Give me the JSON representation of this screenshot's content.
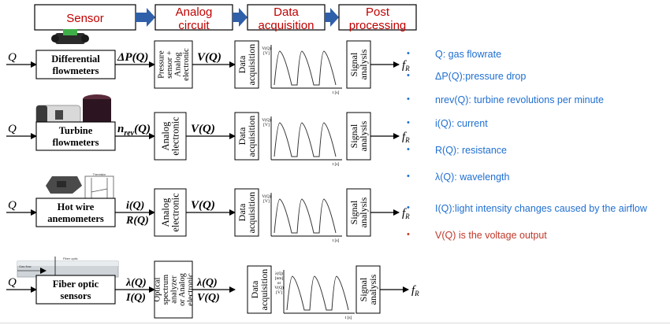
{
  "colors": {
    "stage_fill": "#ffffff",
    "stage_text": "#c00000",
    "stage_arrow_fill": "#2f5fa8",
    "bullet_blue": "#1f6fd1",
    "bullet_red": "#c0392b",
    "ink": "#000000"
  },
  "stages": [
    {
      "label": "Sensor"
    },
    {
      "label": "Analog circuit"
    },
    {
      "label": "Data acquisition"
    },
    {
      "label": "Post processing"
    }
  ],
  "rows": [
    {
      "input": "Q",
      "sensor": [
        "Differential",
        "flowmeters"
      ],
      "signal1": [
        "ΔP(Q)"
      ],
      "circuit": [
        "Pressure",
        "sensor +",
        "Analog",
        "electronic"
      ],
      "signal2": [
        "V(Q)"
      ],
      "daq": [
        "Data",
        "acquisition"
      ],
      "plot_y": [
        "V(Q)",
        "[V]"
      ],
      "plot_x": "t [s]",
      "post": [
        "Signal",
        "analysis"
      ],
      "output": "f",
      "output_sub": "R"
    },
    {
      "input": "Q",
      "sensor": [
        "Turbine",
        "flowmeters"
      ],
      "signal1": [
        "n"
      ],
      "signal1_sub": "rev",
      "signal1_tail": "(Q)",
      "circuit": [
        "Analog",
        "electronic"
      ],
      "signal2": [
        "V(Q)"
      ],
      "daq": [
        "Data",
        "acquisition"
      ],
      "plot_y": [
        "V(Q)",
        "[V]"
      ],
      "plot_x": "t [s]",
      "post": [
        "Signal",
        "analysis"
      ],
      "output": "f",
      "output_sub": "R"
    },
    {
      "input": "Q",
      "sensor": [
        "Hot wire",
        "anemometers"
      ],
      "signal1": [
        "i(Q)",
        "R(Q)"
      ],
      "circuit": [
        "Analog",
        "electronic"
      ],
      "signal2": [
        "V(Q)"
      ],
      "daq": [
        "Data",
        "acquisition"
      ],
      "plot_y": [
        "V(Q)",
        "[V]"
      ],
      "plot_x": "t [s]",
      "post": [
        "Signal",
        "analysis"
      ],
      "output": "f",
      "output_sub": "R"
    },
    {
      "input": "Q",
      "sensor": [
        "Fiber optic",
        "sensors"
      ],
      "signal1": [
        "λ(Q)",
        "I(Q)"
      ],
      "circuit": [
        "Optical",
        "spectrum",
        "analyzer",
        "or Analog",
        "electronic"
      ],
      "signal2": [
        "λ(Q)",
        "V(Q)"
      ],
      "daq": [
        "Data",
        "acquisition"
      ],
      "plot_y": [
        "λ(Q)",
        "[nm]",
        "or",
        "V(Q)",
        "[V]"
      ],
      "plot_x": "t [s]",
      "post": [
        "Signal",
        "analysis"
      ],
      "output": "f",
      "output_sub": "R"
    }
  ],
  "legend": [
    {
      "text": "Q: gas flowrate",
      "tone": "blue"
    },
    {
      "text": "ΔP(Q):pressure drop",
      "tone": "blue"
    },
    {
      "text": "nrev(Q): turbine revolutions per minute",
      "tone": "blue"
    },
    {
      "text": "i(Q): current",
      "tone": "blue"
    },
    {
      "text": "R(Q): resistance",
      "tone": "blue"
    },
    {
      "text": "λ(Q):  wavelength",
      "tone": "blue"
    },
    {
      "text": "I(Q):light intensity changes caused by the airflow",
      "tone": "blue"
    },
    {
      "text": "V(Q) is the voltage output",
      "tone": "red"
    }
  ],
  "thumbnails": {
    "hotwire_top": "Thermistor",
    "hotwire_bottom": "Platinum hot wire",
    "fiber_gas": "Gas flow",
    "fiber_label": "Fiber optic"
  }
}
